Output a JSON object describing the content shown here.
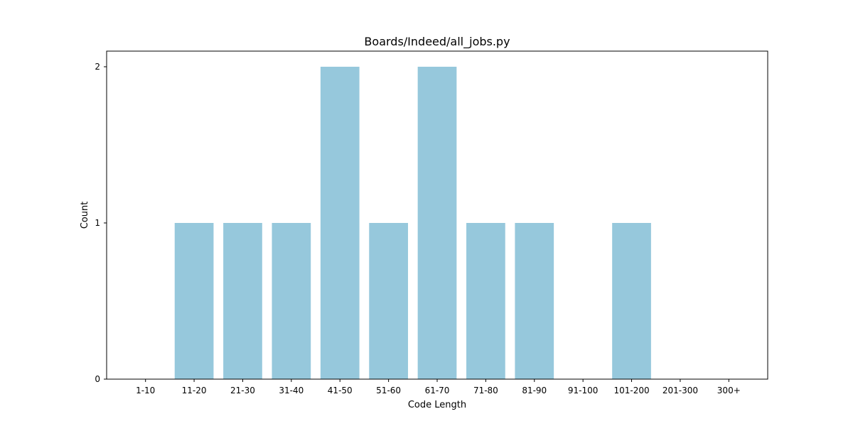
{
  "chart_data": {
    "type": "bar",
    "title": "Boards/Indeed/all_jobs.py",
    "xlabel": "Code Length",
    "ylabel": "Count",
    "categories": [
      "1-10",
      "11-20",
      "21-30",
      "31-40",
      "41-50",
      "51-60",
      "61-70",
      "71-80",
      "81-90",
      "91-100",
      "101-200",
      "201-300",
      "300+"
    ],
    "values": [
      0,
      1,
      1,
      1,
      2,
      1,
      2,
      1,
      1,
      0,
      1,
      0,
      0
    ],
    "yticks": [
      "0",
      "1",
      "2"
    ],
    "ylim": [
      0,
      2.1
    ],
    "bar_color": "#96c8dc",
    "grid": false
  }
}
